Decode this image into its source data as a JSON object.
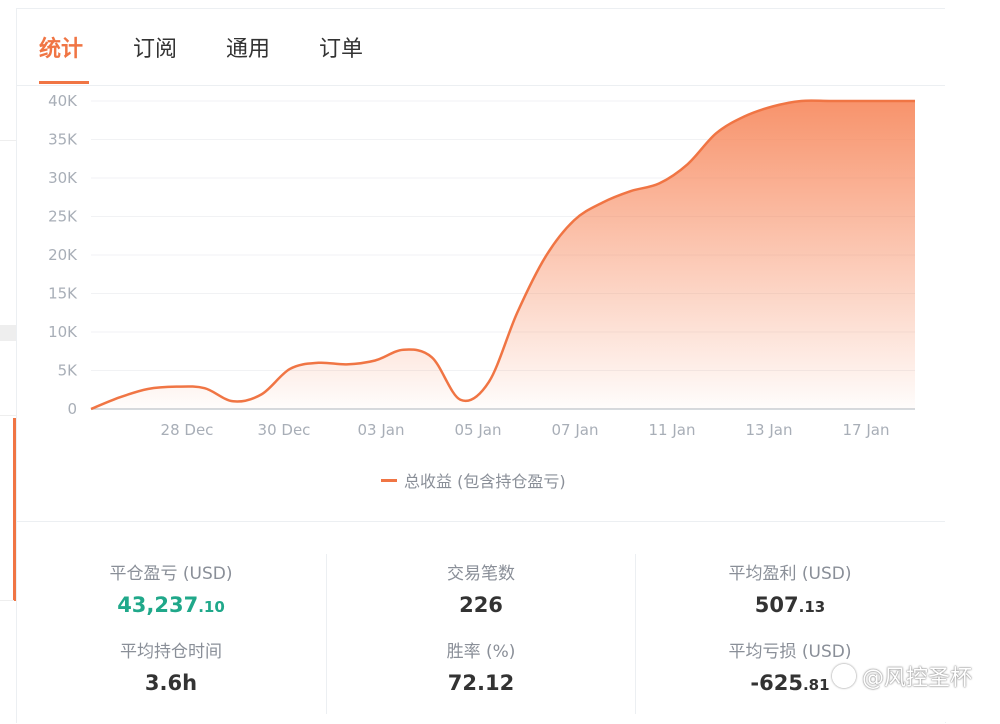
{
  "tabs": [
    {
      "label": "统计",
      "active": true
    },
    {
      "label": "订阅",
      "active": false
    },
    {
      "label": "通用",
      "active": false
    },
    {
      "label": "订单",
      "active": false
    }
  ],
  "colors": {
    "accent": "#f07544",
    "positive": "#20a88a"
  },
  "chart_data": {
    "type": "area",
    "x_tick_labels": [
      "28 Dec",
      "30 Dec",
      "03 Jan",
      "05 Jan",
      "07 Jan",
      "11 Jan",
      "13 Jan",
      "17 Jan"
    ],
    "y_tick_labels": [
      "0",
      "5K",
      "10K",
      "15K",
      "20K",
      "25K",
      "30K",
      "35K",
      "40K"
    ],
    "ylim": [
      0,
      40000
    ],
    "grid": true,
    "legend_position": "bottom",
    "series": [
      {
        "name": "总收益 (包含持仓盈亏)",
        "values": [
          0,
          1500,
          2600,
          2900,
          2700,
          1000,
          1900,
          5200,
          6000,
          5800,
          6300,
          7700,
          6700,
          1200,
          3500,
          12500,
          19800,
          24500,
          26800,
          28300,
          29300,
          31800,
          35800,
          38000,
          39300,
          40000,
          40000,
          40000,
          40000,
          40000
        ]
      }
    ]
  },
  "legend": {
    "label": "总收益 (包含持仓盈亏)"
  },
  "stats": {
    "closed_pnl": {
      "label": "平仓盈亏 (USD)",
      "int": "43,237",
      "dec": ".10"
    },
    "avg_hold": {
      "label": "平均持仓时间",
      "value": "3.6h"
    },
    "trades": {
      "label": "交易笔数",
      "value": "226"
    },
    "win_rate": {
      "label": "胜率 (%)",
      "value": "72.12"
    },
    "avg_profit": {
      "label": "平均盈利 (USD)",
      "int": "507",
      "dec": ".13"
    },
    "avg_loss": {
      "label": "平均亏损 (USD)",
      "int": "-625",
      "dec": ".81"
    }
  },
  "watermark": {
    "text": "@风控圣杯"
  }
}
